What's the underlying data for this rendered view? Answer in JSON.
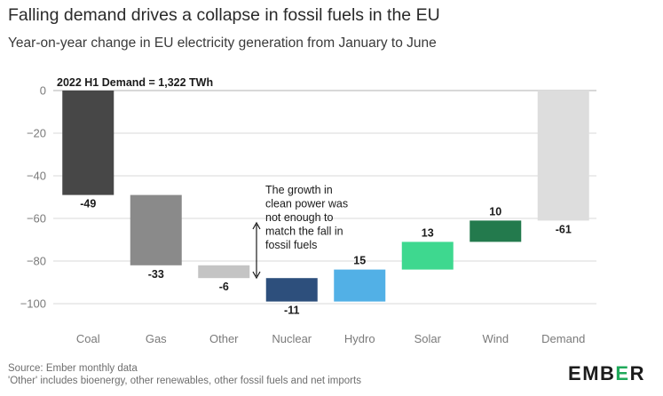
{
  "title": "Falling demand drives a collapse in fossil fuels in the EU",
  "subtitle": "Year-on-year change in EU electricity generation from January to June",
  "chart_data": {
    "type": "bar",
    "subtype": "waterfall",
    "title": "Falling demand drives a collapse in fossil fuels in the EU",
    "subtitle": "Year-on-year change in EU electricity generation from January to June",
    "xlabel": "",
    "ylabel": "",
    "ylim": [
      -100,
      0
    ],
    "yticks": [
      0,
      -20,
      -40,
      -60,
      -80,
      -100
    ],
    "grid": true,
    "categories": [
      "Coal",
      "Gas",
      "Other",
      "Nuclear",
      "Hydro",
      "Solar",
      "Wind",
      "Demand"
    ],
    "values": [
      -49,
      -33,
      -6,
      -11,
      15,
      13,
      10,
      -61
    ],
    "value_labels": [
      "-49",
      "-33",
      "-6",
      "-11",
      "15",
      "13",
      "10",
      "-61"
    ],
    "bar_start": [
      0,
      -49,
      -82,
      -88,
      -99,
      -84,
      -71,
      0
    ],
    "bar_end": [
      -49,
      -82,
      -88,
      -99,
      -84,
      -71,
      -61,
      -61
    ],
    "colors": [
      "#474747",
      "#8a8a8a",
      "#c4c4c4",
      "#2d4f7c",
      "#52b0e6",
      "#3ed88f",
      "#237a4d",
      "#dddddd"
    ],
    "annotations": [
      {
        "text": "2022 H1 Demand = 1,322 TWh"
      },
      {
        "text": "The growth in clean power was not enough to match the fall in fossil fuels"
      }
    ]
  },
  "footer": {
    "source": "Source: Ember monthly data",
    "note": "'Other' includes bioenergy, other renewables, other fossil fuels and net imports"
  },
  "logo": {
    "text_main": "EMB",
    "text_accent": "E",
    "text_end": "R"
  }
}
